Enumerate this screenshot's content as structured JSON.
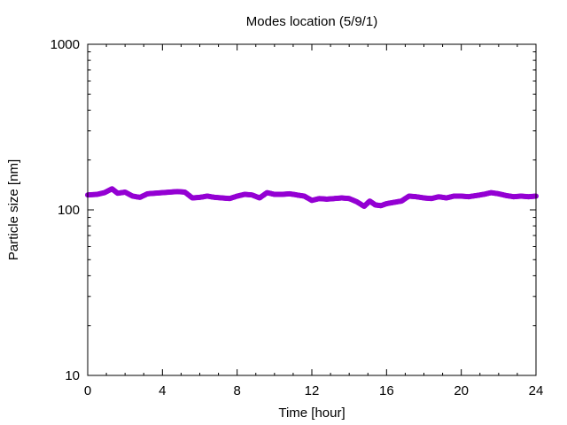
{
  "chart_data": {
    "type": "scatter",
    "title": "Modes location (5/9/1)",
    "xlabel": "Time [hour]",
    "ylabel": "Particle size [nm]",
    "xlim": [
      0,
      24
    ],
    "ylim": [
      10,
      1000
    ],
    "yscale": "log",
    "grid": false,
    "x_ticks": [
      0,
      4,
      8,
      12,
      16,
      20,
      24
    ],
    "y_ticks": [
      10,
      100,
      1000
    ],
    "marker_color": "#9400d3",
    "series": [
      {
        "x": [
          0,
          0.5,
          0.9,
          1.3,
          1.6,
          2.0,
          2.4,
          2.8,
          3.2,
          3.6,
          4.0,
          4.4,
          4.8,
          5.2,
          5.6,
          6.0,
          6.4,
          6.8,
          7.2,
          7.6,
          8.0,
          8.4,
          8.8,
          9.2,
          9.6,
          10.0,
          10.4,
          10.8,
          11.2,
          11.6,
          12.0,
          12.4,
          12.8,
          13.2,
          13.6,
          14.0,
          14.4,
          14.8,
          15.1,
          15.4,
          15.7,
          16.0,
          16.4,
          16.8,
          17.2,
          17.6,
          18.0,
          18.4,
          18.8,
          19.2,
          19.6,
          20.0,
          20.4,
          20.8,
          21.2,
          21.6,
          22.0,
          22.4,
          22.8,
          23.2,
          23.6,
          24.0
        ],
        "values": [
          123,
          124,
          127,
          134,
          126,
          128,
          121,
          119,
          125,
          126,
          127,
          128,
          129,
          128,
          118,
          119,
          121,
          119,
          118,
          117,
          121,
          124,
          123,
          118,
          127,
          124,
          124,
          125,
          123,
          121,
          114,
          117,
          116,
          117,
          118,
          117,
          112,
          105,
          113,
          107,
          106,
          109,
          111,
          113,
          121,
          120,
          118,
          117,
          120,
          118,
          121,
          121,
          120,
          122,
          124,
          127,
          125,
          122,
          120,
          121,
          120,
          121
        ]
      }
    ]
  }
}
